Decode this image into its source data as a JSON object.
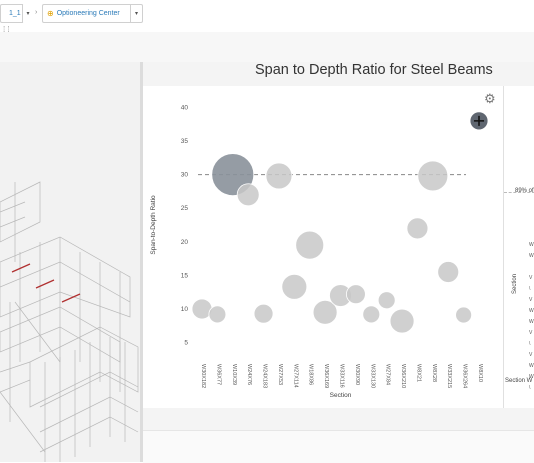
{
  "topbar": {
    "crumb1": "1_1",
    "separator": "›",
    "crumb2": "Optioneering Center",
    "ellipsis": "› › "
  },
  "panel": {
    "title": "Span to Depth Ratio for Steel Beams"
  },
  "right_panel": {
    "percent_label": "89% of",
    "axis_label": "Section",
    "axis_label2": "Section W"
  },
  "chart_data": {
    "type": "scatter",
    "title": "Span to Depth Ratio for Steel Beams",
    "xlabel": "Section",
    "ylabel": "Span-to-Depth Ratio",
    "ylim": [
      3,
      42
    ],
    "yticks": [
      5,
      10,
      15,
      20,
      25,
      30,
      35,
      40
    ],
    "categories": [
      "W30X182",
      "W36X77",
      "W10X39",
      "W24X76",
      "W24X183",
      "W27X53",
      "W27X114",
      "W18X86",
      "W36X169",
      "W33X116",
      "W30X90",
      "W33X130",
      "W27X84",
      "W36X210",
      "W8X21",
      "W8X28",
      "W33X215",
      "W36X264",
      "W8X10"
    ],
    "reference_line": 30,
    "points": [
      {
        "x": "W30X182",
        "y": 10,
        "size": 10
      },
      {
        "x": "W36X77",
        "y": 9.2,
        "size": 8.5
      },
      {
        "x": "W10X39",
        "y": 30,
        "size": 21,
        "highlight": true
      },
      {
        "x": "W24X76",
        "y": 27,
        "size": 11
      },
      {
        "x": "W24X183",
        "y": 9.3,
        "size": 9.5
      },
      {
        "x": "W27X53",
        "y": 29.8,
        "size": 13
      },
      {
        "x": "W27X114",
        "y": 13.3,
        "size": 12.5
      },
      {
        "x": "W18X86",
        "y": 19.5,
        "size": 14
      },
      {
        "x": "W36X169",
        "y": 9.5,
        "size": 12
      },
      {
        "x": "W33X116",
        "y": 12,
        "size": 11
      },
      {
        "x": "W30X90",
        "y": 12.2,
        "size": 9.5
      },
      {
        "x": "W33X130",
        "y": 9.2,
        "size": 8.5
      },
      {
        "x": "W27X84",
        "y": 11.3,
        "size": 8.5
      },
      {
        "x": "W36X210",
        "y": 8.2,
        "size": 12
      },
      {
        "x": "W8X21",
        "y": 22,
        "size": 10.5
      },
      {
        "x": "W8X28",
        "y": 29.8,
        "size": 15
      },
      {
        "x": "W33X215",
        "y": 15.5,
        "size": 10.5
      },
      {
        "x": "W36X264",
        "y": 9.1,
        "size": 8
      },
      {
        "x": "W8X10",
        "y": 38,
        "size": 9,
        "selected": true
      }
    ],
    "colors": {
      "bubble": "#c8c8c8",
      "highlight": "#8a919a",
      "selected": "#5f6670",
      "line": "#888888"
    }
  }
}
